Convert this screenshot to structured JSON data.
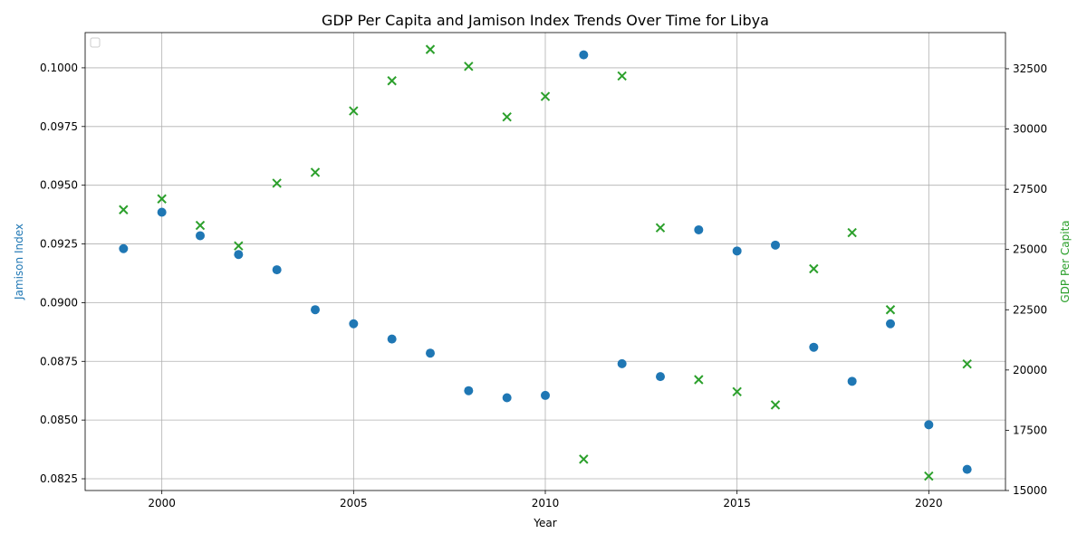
{
  "chart_data": {
    "type": "scatter",
    "title": "GDP Per Capita and Jamison Index Trends Over Time for Libya",
    "xlabel": "Year",
    "ylabel_left": "Jamison Index",
    "ylabel_right": "GDP Per Capita",
    "xlim": [
      1998,
      2022
    ],
    "ylim_left": [
      0.082,
      0.1015
    ],
    "ylim_right": [
      15000,
      34000
    ],
    "x_ticks": [
      2000,
      2005,
      2010,
      2015,
      2020
    ],
    "y_left_ticks": [
      0.0825,
      0.085,
      0.0875,
      0.09,
      0.0925,
      0.095,
      0.0975,
      0.1
    ],
    "y_left_tick_labels": [
      "0.0825",
      "0.0850",
      "0.0875",
      "0.0900",
      "0.0925",
      "0.0950",
      "0.0975",
      "0.1000"
    ],
    "y_right_ticks": [
      15000,
      17500,
      20000,
      22500,
      25000,
      27500,
      30000,
      32500
    ],
    "y_right_tick_labels": [
      "15000",
      "17500",
      "20000",
      "22500",
      "25000",
      "27500",
      "30000",
      "32500"
    ],
    "grid": true,
    "legend": {
      "placement": "upper-left",
      "entries": []
    },
    "colors": {
      "jamison": "#1f77b4",
      "gdp": "#2ca02c"
    },
    "series": [
      {
        "key": "jamison",
        "axis": "left",
        "marker": "circle",
        "x": [
          1999,
          2000,
          2001,
          2002,
          2003,
          2004,
          2005,
          2006,
          2007,
          2008,
          2009,
          2010,
          2011,
          2012,
          2013,
          2014,
          2015,
          2016,
          2017,
          2018,
          2019,
          2020,
          2021
        ],
        "values": [
          0.0923,
          0.09385,
          0.09285,
          0.09205,
          0.0914,
          0.0897,
          0.0891,
          0.08845,
          0.08785,
          0.08625,
          0.08595,
          0.08605,
          0.10055,
          0.0874,
          0.08685,
          0.0931,
          0.0922,
          0.09245,
          0.0881,
          0.08665,
          0.0891,
          0.0848,
          0.0829
        ]
      },
      {
        "key": "gdp",
        "axis": "right",
        "marker": "x",
        "x": [
          1999,
          2000,
          2001,
          2002,
          2003,
          2004,
          2005,
          2006,
          2007,
          2008,
          2009,
          2010,
          2011,
          2012,
          2013,
          2014,
          2015,
          2016,
          2017,
          2018,
          2019,
          2020,
          2021
        ],
        "values": [
          26650,
          27100,
          26000,
          25150,
          27750,
          28200,
          30750,
          32000,
          33300,
          32600,
          30500,
          31350,
          16300,
          32200,
          25900,
          19600,
          19100,
          18550,
          24200,
          25700,
          22500,
          15600,
          20250
        ]
      }
    ]
  }
}
